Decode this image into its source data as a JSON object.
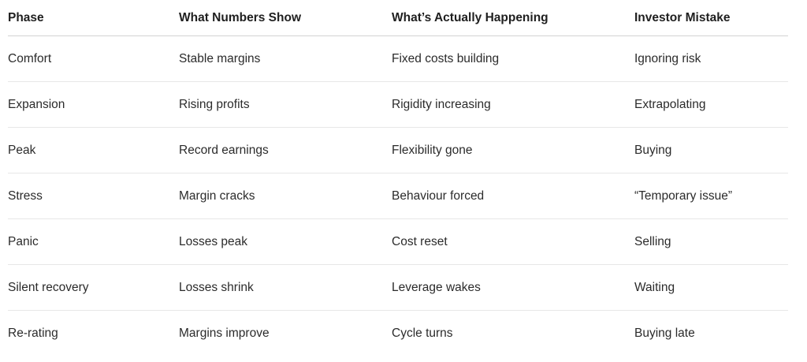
{
  "table": {
    "headers": [
      "Phase",
      "What Numbers Show",
      "What’s Actually Happening",
      "Investor Mistake"
    ],
    "rows": [
      [
        "Comfort",
        "Stable margins",
        "Fixed costs building",
        "Ignoring risk"
      ],
      [
        "Expansion",
        "Rising profits",
        "Rigidity increasing",
        "Extrapolating"
      ],
      [
        "Peak",
        "Record earnings",
        "Flexibility gone",
        "Buying"
      ],
      [
        "Stress",
        "Margin cracks",
        "Behaviour forced",
        "“Temporary issue”"
      ],
      [
        "Panic",
        "Losses peak",
        "Cost reset",
        "Selling"
      ],
      [
        "Silent recovery",
        "Losses shrink",
        "Leverage wakes",
        "Waiting"
      ],
      [
        "Re-rating",
        "Margins improve",
        "Cycle turns",
        "Buying late"
      ]
    ]
  },
  "colors": {
    "background": "#ffffff",
    "header_text": "#1f1f1f",
    "body_text": "#2b2b2b",
    "header_border": "#d2d2d2",
    "row_border": "#e7e7e7"
  }
}
